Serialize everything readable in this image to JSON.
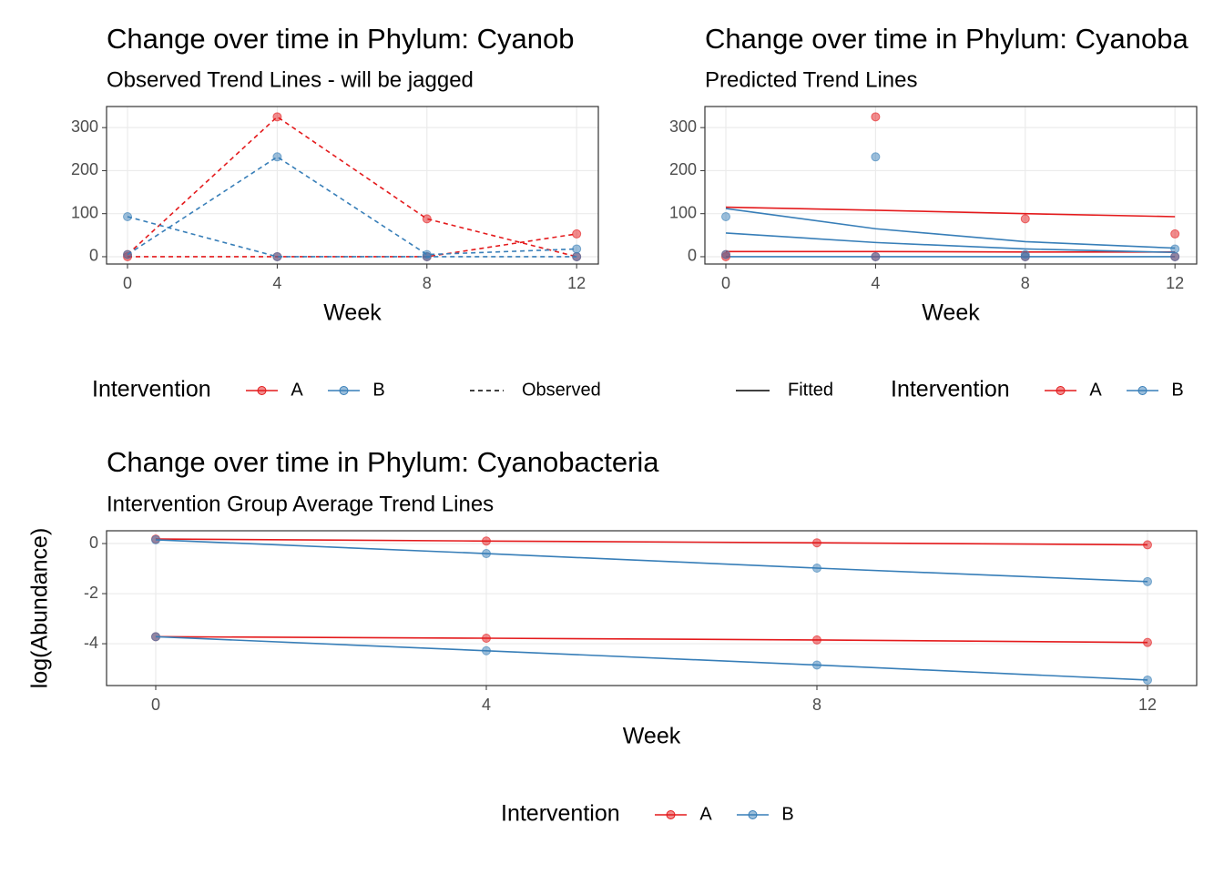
{
  "chart_data": [
    {
      "type": "line",
      "title": "Change over time in Phylum: Cyanob",
      "subtitle": "Observed Trend Lines - will be jagged",
      "x_label": "Week",
      "x": [
        0,
        4,
        8,
        12
      ],
      "xlim": [
        -0.56,
        12.58
      ],
      "xticks": [
        0,
        4,
        8,
        12
      ],
      "ylim": [
        -17,
        349
      ],
      "yticks": [
        0,
        100,
        200,
        300
      ],
      "grid": true,
      "legend_title": "Intervention",
      "linetype_label": "Observed",
      "linetype": "dashed",
      "series": [
        {
          "name": "A",
          "color": "#e41a1c",
          "line": "dashed",
          "markers": true,
          "values": [
            5,
            325,
            88,
            0
          ]
        },
        {
          "name": "A",
          "color": "#e41a1c",
          "line": "dashed",
          "markers": true,
          "values": [
            0,
            0,
            0,
            53
          ]
        },
        {
          "name": "B",
          "color": "#377eb8",
          "line": "dashed",
          "markers": true,
          "values": [
            5,
            232,
            5,
            18
          ]
        },
        {
          "name": "B",
          "color": "#377eb8",
          "line": "dashed",
          "markers": true,
          "values": [
            93,
            0,
            0,
            0
          ]
        }
      ]
    },
    {
      "type": "line",
      "title": "Change over time in Phylum: Cyanoba",
      "subtitle": "Predicted Trend Lines",
      "x_label": "Week",
      "x": [
        0,
        4,
        8,
        12
      ],
      "xlim": [
        -0.56,
        12.58
      ],
      "xticks": [
        0,
        4,
        8,
        12
      ],
      "ylim": [
        -17,
        349
      ],
      "yticks": [
        0,
        100,
        200,
        300
      ],
      "grid": true,
      "legend_title": "Intervention",
      "linetype_label": "Fitted",
      "linetype": "solid",
      "series": [
        {
          "name": "A",
          "color": "#e41a1c",
          "line": "solid",
          "markers": false,
          "values": [
            115,
            108,
            100,
            93
          ]
        },
        {
          "name": "A",
          "color": "#e41a1c",
          "line": "solid",
          "markers": false,
          "values": [
            12,
            12,
            11,
            11
          ]
        },
        {
          "name": "B",
          "color": "#377eb8",
          "line": "solid",
          "markers": false,
          "values": [
            112,
            65,
            35,
            20
          ]
        },
        {
          "name": "B",
          "color": "#377eb8",
          "line": "solid",
          "markers": false,
          "values": [
            55,
            33,
            18,
            10
          ]
        },
        {
          "name": "B",
          "color": "#377eb8",
          "line": "solid",
          "markers": false,
          "values": [
            0,
            0,
            0,
            0
          ]
        },
        {
          "name": "A",
          "color": "#e41a1c",
          "line": "none",
          "markers": true,
          "values": [
            5,
            325,
            88,
            0
          ]
        },
        {
          "name": "A",
          "color": "#e41a1c",
          "line": "none",
          "markers": true,
          "values": [
            0,
            0,
            0,
            53
          ]
        },
        {
          "name": "B",
          "color": "#377eb8",
          "line": "none",
          "markers": true,
          "values": [
            5,
            232,
            5,
            18
          ]
        },
        {
          "name": "B",
          "color": "#377eb8",
          "line": "none",
          "markers": true,
          "values": [
            93,
            0,
            0,
            0
          ]
        }
      ]
    },
    {
      "type": "line",
      "title": "Change over time in Phylum: Cyanobacteria",
      "subtitle": "Intervention Group Average Trend Lines",
      "x_label": "Week",
      "y_label": "log(Abundance)",
      "x": [
        0,
        4,
        8,
        12
      ],
      "xlim": [
        -0.595,
        12.595
      ],
      "xticks": [
        0,
        4,
        8,
        12
      ],
      "ylim": [
        -5.67,
        0.51
      ],
      "yticks": [
        0,
        -2,
        -4
      ],
      "grid": true,
      "legend_title": "Intervention",
      "series": [
        {
          "name": "A",
          "color": "#e41a1c",
          "line": "solid",
          "markers": true,
          "values": [
            0.18,
            0.1,
            0.03,
            -0.05
          ]
        },
        {
          "name": "A",
          "color": "#e41a1c",
          "line": "solid",
          "markers": true,
          "values": [
            -3.72,
            -3.78,
            -3.85,
            -3.95
          ]
        },
        {
          "name": "B",
          "color": "#377eb8",
          "line": "solid",
          "markers": true,
          "values": [
            0.15,
            -0.4,
            -0.98,
            -1.52
          ]
        },
        {
          "name": "B",
          "color": "#377eb8",
          "line": "solid",
          "markers": true,
          "values": [
            -3.72,
            -4.28,
            -4.85,
            -5.45
          ]
        }
      ]
    }
  ]
}
